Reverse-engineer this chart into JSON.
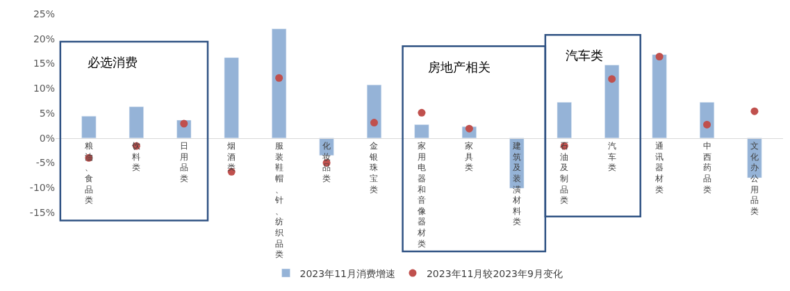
{
  "chart_data": {
    "type": "bar",
    "categories": [
      "粮油、食品类",
      "饮料类",
      "日用品类",
      "烟酒类",
      "服装鞋帽、针、纺织品类",
      "化妆品类",
      "金银珠宝类",
      "家用电器和音像器材类",
      "家具类",
      "建筑及装潢材料类",
      "石油及制品类",
      "汽车类",
      "通讯器材类",
      "中西药品类",
      "文化办公用品类"
    ],
    "series": [
      {
        "name": "2023年11月消费增速",
        "color": "#95b3d7",
        "values": [
          4.4,
          6.3,
          3.6,
          16.2,
          22.0,
          -3.5,
          10.7,
          2.7,
          2.3,
          -10.1,
          7.2,
          14.7,
          16.8,
          7.2,
          -8.0
        ]
      },
      {
        "name": "2023年11月较2023年9月变化",
        "color": "#c0504d",
        "type": "scatter",
        "marker": "circle",
        "values": [
          -4.0,
          -1.6,
          2.9,
          -6.8,
          12.1,
          -5.0,
          3.1,
          5.1,
          1.9,
          null,
          -1.6,
          11.9,
          16.4,
          2.7,
          5.4
        ]
      }
    ],
    "ylim": [
      -15,
      25
    ],
    "yticks": [
      {
        "value": -15,
        "label": "-15%"
      },
      {
        "value": -10,
        "label": "-10%"
      },
      {
        "value": -5,
        "label": "-5%"
      },
      {
        "value": 0,
        "label": "0%"
      },
      {
        "value": 5,
        "label": "5%"
      },
      {
        "value": 10,
        "label": "10%"
      },
      {
        "value": 15,
        "label": "15%"
      },
      {
        "value": 20,
        "label": "20%"
      },
      {
        "value": 25,
        "label": "25%"
      }
    ],
    "annotations": [
      "必选消费",
      "房地产相关",
      "汽车类"
    ],
    "legend": "bottom"
  }
}
